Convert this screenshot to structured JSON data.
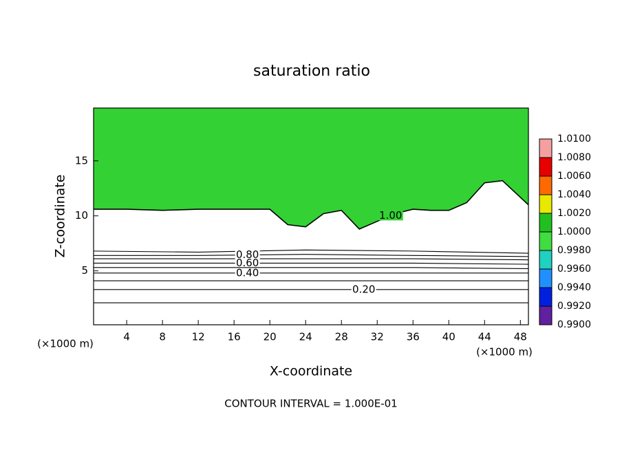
{
  "chart_data": {
    "type": "contour",
    "title": "saturation ratio",
    "xlabel": "X-coordinate",
    "ylabel": "Z-coordinate",
    "x_unit_label": "(×1000 m)",
    "y_unit_label": "(×1000 m)",
    "footer": "CONTOUR INTERVAL = 1.000E-01",
    "xlim": [
      0.3,
      48.9
    ],
    "ylim": [
      0.1,
      19.8
    ],
    "xticks": [
      4,
      8,
      12,
      16,
      20,
      24,
      28,
      32,
      36,
      40,
      44,
      48
    ],
    "yticks": [
      5,
      10,
      15
    ],
    "field_color": "#33d133",
    "contours": [
      {
        "level": 1.0,
        "label": "1.00",
        "label_x": 33.5,
        "x": [
          0.3,
          4,
          8,
          12,
          16,
          20,
          22,
          24,
          26,
          28,
          30,
          32,
          34,
          36,
          38,
          40,
          42,
          44,
          46,
          48.9
        ],
        "z": [
          10.6,
          10.6,
          10.5,
          10.6,
          10.6,
          10.6,
          9.2,
          9.0,
          10.2,
          10.5,
          8.8,
          9.5,
          10.2,
          10.6,
          10.5,
          10.5,
          11.2,
          13.0,
          13.2,
          11.0
        ]
      },
      {
        "level": 0.9,
        "x": [
          0.3,
          12,
          24,
          36,
          48.9
        ],
        "z": [
          6.8,
          6.7,
          6.9,
          6.8,
          6.6
        ]
      },
      {
        "level": 0.8,
        "label": "0.80",
        "label_x": 17.5,
        "x": [
          0.3,
          12,
          24,
          36,
          48.9
        ],
        "z": [
          6.4,
          6.4,
          6.5,
          6.4,
          6.3
        ]
      },
      {
        "level": 0.7,
        "x": [
          0.3,
          12,
          24,
          36,
          48.9
        ],
        "z": [
          6.1,
          6.1,
          6.1,
          6.1,
          6.0
        ]
      },
      {
        "level": 0.6,
        "label": "0.60",
        "label_x": 17.5,
        "x": [
          0.3,
          12,
          24,
          36,
          48.9
        ],
        "z": [
          5.7,
          5.7,
          5.7,
          5.7,
          5.6
        ]
      },
      {
        "level": 0.5,
        "x": [
          0.3,
          12,
          24,
          36,
          48.9
        ],
        "z": [
          5.3,
          5.3,
          5.3,
          5.3,
          5.2
        ]
      },
      {
        "level": 0.4,
        "label": "0.40",
        "label_x": 17.5,
        "x": [
          0.3,
          12,
          24,
          36,
          48.9
        ],
        "z": [
          4.8,
          4.8,
          4.8,
          4.8,
          4.8
        ]
      },
      {
        "level": 0.3,
        "x": [
          0.3,
          12,
          24,
          36,
          48.9
        ],
        "z": [
          4.1,
          4.1,
          4.1,
          4.1,
          4.1
        ]
      },
      {
        "level": 0.2,
        "label": "0.20",
        "label_x": 30.5,
        "x": [
          0.3,
          12,
          24,
          36,
          48.9
        ],
        "z": [
          3.3,
          3.3,
          3.3,
          3.3,
          3.3
        ]
      },
      {
        "level": 0.1,
        "x": [
          0.3,
          12,
          24,
          36,
          48.9
        ],
        "z": [
          2.1,
          2.1,
          2.1,
          2.1,
          2.1
        ]
      }
    ],
    "colorbar": {
      "lim": [
        0.99,
        1.01
      ],
      "ticks": [
        {
          "value": 1.01,
          "label": "1.0100"
        },
        {
          "value": 1.008,
          "label": "1.0080"
        },
        {
          "value": 1.006,
          "label": "1.0060"
        },
        {
          "value": 1.004,
          "label": "1.0040"
        },
        {
          "value": 1.002,
          "label": "1.0020"
        },
        {
          "value": 1.0,
          "label": "1.0000"
        },
        {
          "value": 0.998,
          "label": "0.9980"
        },
        {
          "value": 0.996,
          "label": "0.9960"
        },
        {
          "value": 0.994,
          "label": "0.9940"
        },
        {
          "value": 0.992,
          "label": "0.9920"
        },
        {
          "value": 0.99,
          "label": "0.9900"
        }
      ],
      "colors": [
        "#f4a0a0",
        "#e60000",
        "#ff6a00",
        "#e8e800",
        "#20c020",
        "#40dc40",
        "#20d0c0",
        "#2090ff",
        "#0020e0",
        "#6020a0"
      ]
    }
  }
}
